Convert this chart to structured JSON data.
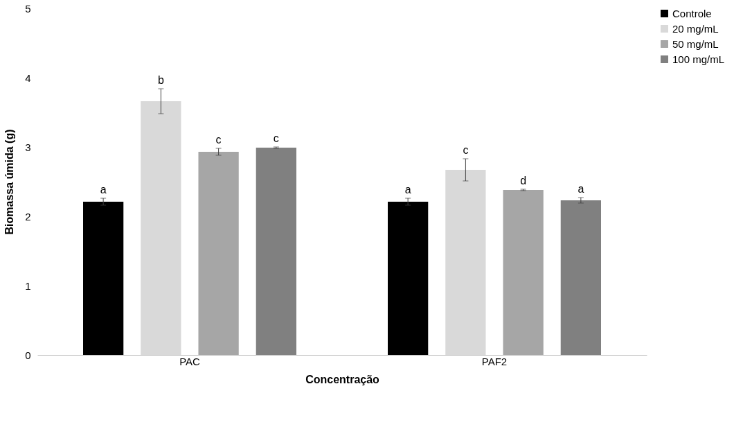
{
  "chart_data": {
    "type": "bar",
    "xlabel": "Concentração",
    "ylabel": "Biomassa úmida (g)",
    "categories": [
      "PAC",
      "PAF2"
    ],
    "series": [
      {
        "name": "Controle",
        "color": "#000000",
        "values": [
          2.21,
          2.21
        ],
        "errors": [
          0.05,
          0.05
        ],
        "value_labels": [
          "a",
          "a"
        ]
      },
      {
        "name": "20 mg/mL",
        "color": "#d9d9d9",
        "values": [
          3.66,
          2.67
        ],
        "errors": [
          0.18,
          0.16
        ],
        "value_labels": [
          "b",
          "c"
        ]
      },
      {
        "name": "50 mg/mL",
        "color": "#a6a6a6",
        "values": [
          2.93,
          2.38
        ],
        "errors": [
          0.05,
          0.01
        ],
        "value_labels": [
          "c",
          "d"
        ]
      },
      {
        "name": "100 mg/mL",
        "color": "#808080",
        "values": [
          2.99,
          2.23
        ],
        "errors": [
          0.01,
          0.04
        ],
        "value_labels": [
          "c",
          "a"
        ]
      }
    ],
    "ylim": [
      0,
      5
    ],
    "yticks": [
      0,
      1,
      2,
      3,
      4,
      5
    ],
    "grid": false,
    "legend": "top right"
  }
}
